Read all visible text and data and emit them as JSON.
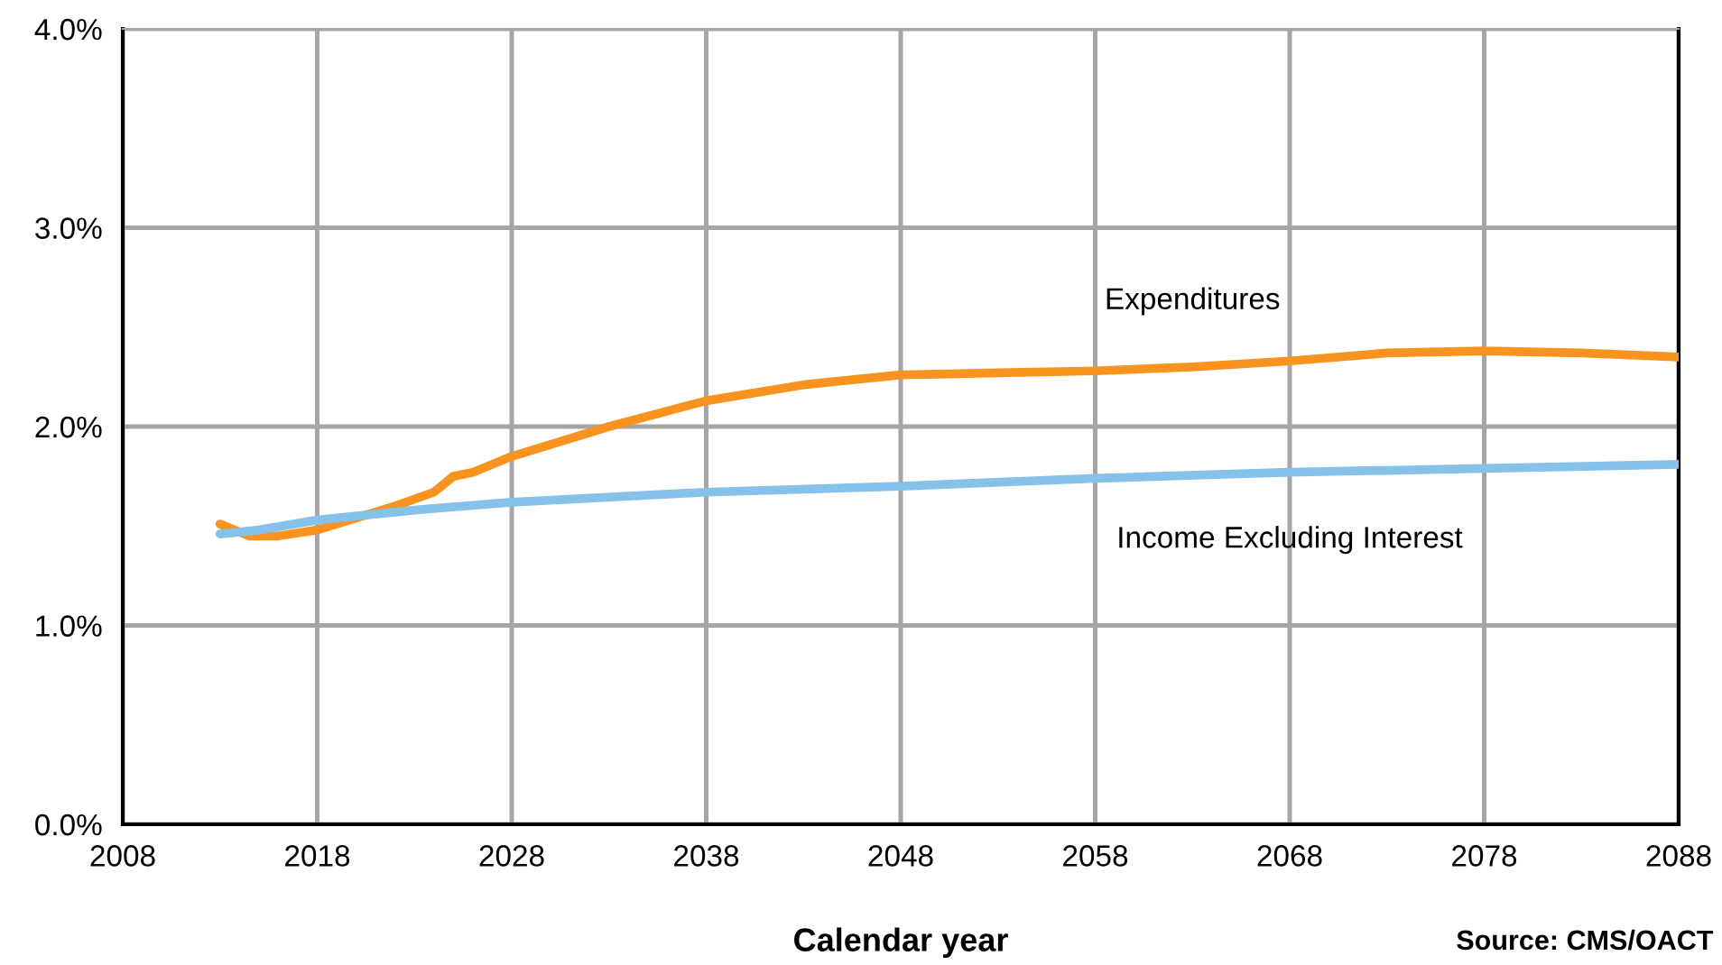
{
  "chart_data": {
    "type": "line",
    "xlabel": "Calendar year",
    "annotations": [
      "Source: CMS/OACT"
    ],
    "xlim": [
      2008,
      2088
    ],
    "xticks": [
      2008,
      2018,
      2028,
      2038,
      2048,
      2058,
      2068,
      2078,
      2088
    ],
    "ylim": [
      0,
      4
    ],
    "yticks": [
      {
        "value": 0,
        "label": "0.0%"
      },
      {
        "value": 1,
        "label": "1.0%"
      },
      {
        "value": 2,
        "label": "2.0%"
      },
      {
        "value": 3,
        "label": "3.0%"
      },
      {
        "value": 4,
        "label": "4.0%"
      }
    ],
    "grid": true,
    "legend": false,
    "marker": "none",
    "line_style": "solid",
    "series": [
      {
        "name": "Expenditures",
        "color": "#f7931e",
        "x": [
          2013,
          2014.5,
          2016,
          2018,
          2020,
          2022,
          2024,
          2025,
          2026,
          2028,
          2033,
          2038,
          2043,
          2048,
          2053,
          2058,
          2063,
          2068,
          2073,
          2078,
          2083,
          2088
        ],
        "values": [
          1.51,
          1.45,
          1.45,
          1.48,
          1.54,
          1.6,
          1.67,
          1.75,
          1.77,
          1.85,
          2.0,
          2.13,
          2.21,
          2.26,
          2.27,
          2.28,
          2.3,
          2.33,
          2.37,
          2.38,
          2.37,
          2.35
        ]
      },
      {
        "name": "Income Excluding Interest",
        "color": "#85c1e9",
        "x": [
          2013,
          2015,
          2018,
          2023,
          2028,
          2038,
          2048,
          2058,
          2068,
          2078,
          2088
        ],
        "values": [
          1.46,
          1.48,
          1.53,
          1.58,
          1.62,
          1.67,
          1.7,
          1.74,
          1.77,
          1.79,
          1.81
        ]
      }
    ]
  }
}
